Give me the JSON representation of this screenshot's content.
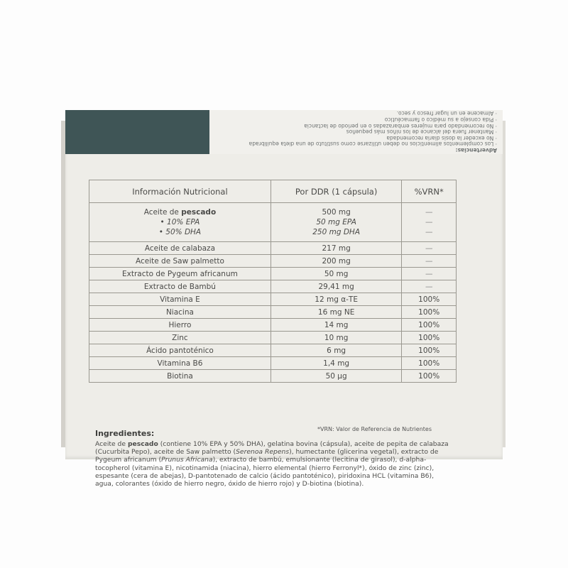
{
  "warnings": {
    "title": "Advertencias:",
    "lines": [
      "· Los complementos alimenticios no deben utilizarse como sustituto de una dieta equilibrada",
      "· No exceder la dosis diaria recomendada",
      "· Mantener fuera del alcance de los niños más pequeños",
      "· No recomendado para mujeres embarazadas o en periodo de lactancia",
      "· Pida consejo a su médico o farmacéutico",
      "· Almacene en un lugar fresco y seco."
    ]
  },
  "table": {
    "headers": [
      "Información Nutricional",
      "Por DDR (1 cápsula)",
      "%VRN*"
    ],
    "fish": {
      "name_pre": "Aceite de ",
      "name_bold": "pescado",
      "amount": "500 mg",
      "vrn": "—",
      "epa": "• 10% EPA",
      "dha": "• 50% DHA",
      "epa_amount": "50 mg EPA",
      "dha_amount": "250 mg DHA",
      "epa_vrn": "—",
      "dha_vrn": "—"
    },
    "rows": [
      {
        "name": "Aceite de calabaza",
        "amount": "217 mg",
        "vrn": "—"
      },
      {
        "name": "Aceite de Saw palmetto",
        "amount": "200 mg",
        "vrn": "—"
      },
      {
        "name": "Extracto de Pygeum africanum",
        "amount": "50 mg",
        "vrn": "—"
      },
      {
        "name": "Extracto de Bambú",
        "amount": "29,41 mg",
        "vrn": "—"
      },
      {
        "name": "Vitamina E",
        "amount": "12 mg α-TE",
        "vrn": "100%"
      },
      {
        "name": "Niacina",
        "amount": "16 mg NE",
        "vrn": "100%"
      },
      {
        "name": "Hierro",
        "amount": "14 mg",
        "vrn": "100%"
      },
      {
        "name": "Zinc",
        "amount": "10 mg",
        "vrn": "100%"
      },
      {
        "name": "Ácido pantoténico",
        "amount": "6 mg",
        "vrn": "100%"
      },
      {
        "name": "Vitamina B6",
        "amount": "1,4 mg",
        "vrn": "100%"
      },
      {
        "name": "Biotina",
        "amount": "50 µg",
        "vrn": "100%"
      }
    ]
  },
  "vrn_note": "*VRN: Valor de Referencia de Nutrientes",
  "ingredients": {
    "title": "Ingredientes:",
    "p1": "Aceite de ",
    "p1_bold": "pescado",
    "p2": " (contiene 10% EPA y 50% DHA), gelatina bovina (cápsula), aceite de pepita de calabaza (Cucurbita Pepo), aceite de Saw palmetto (",
    "p2_italic": "Serenoa Repens",
    "p3": "), humectante (glicerina vegetal), extracto de Pygeum africanum (",
    "p3_italic": "Prunus Africana",
    "p4": "), extracto de bambú, emulsionante (lecitina de girasol), d-alpha-tocopherol (vitamina E), nicotinamida (niacina), hierro elemental (hierro Ferronyl*), óxido de zinc (zinc), espesante (cera de abejas), D-pantotenado de calcio (ácido pantoténico), piridoxina HCL (vitamina B6), agua,  colorantes (óxido de hierro negro, óxido de hierro rojo) y D-biotina (biotina)."
  },
  "colors": {
    "flap_dark": "#3f5556",
    "box": "#eeede8",
    "text": "#4a4a48"
  }
}
